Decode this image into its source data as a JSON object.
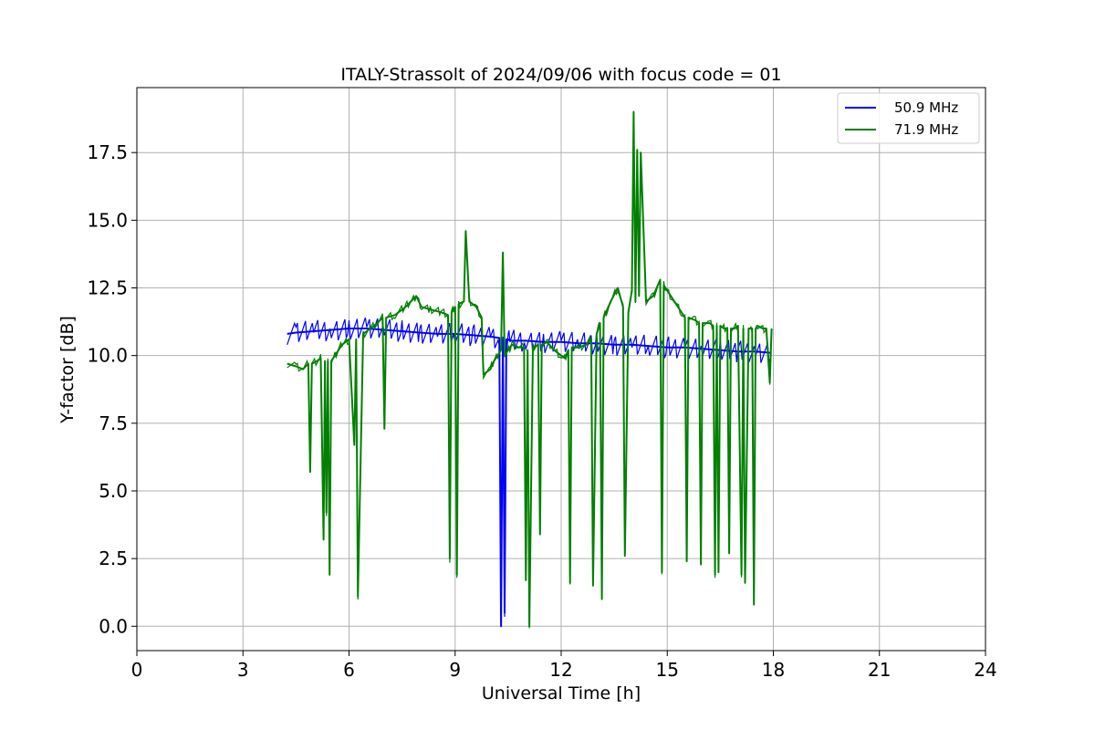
{
  "chart_data": {
    "type": "line",
    "title": "ITALY-Strassolt of 2024/09/06 with focus code = 01",
    "xlabel": "Universal Time [h]",
    "ylabel": "Y-factor [dB]",
    "xlim": [
      0,
      24
    ],
    "ylim": [
      -0.9,
      19.9
    ],
    "xticks": [
      0,
      3,
      6,
      9,
      12,
      15,
      18,
      21,
      24
    ],
    "xtick_labels": [
      "0",
      "3",
      "6",
      "9",
      "12",
      "15",
      "18",
      "21",
      "24"
    ],
    "yticks": [
      0.0,
      2.5,
      5.0,
      7.5,
      10.0,
      12.5,
      15.0,
      17.5
    ],
    "ytick_labels": [
      "0.0",
      "2.5",
      "5.0",
      "7.5",
      "10.0",
      "12.5",
      "15.0",
      "17.5"
    ],
    "grid": true,
    "legend_position": "top-right",
    "series": [
      {
        "name": "50.9 MHz",
        "color": "#0000ff",
        "x": [
          4.25,
          4.5,
          5.0,
          5.5,
          6.0,
          6.5,
          7.0,
          7.5,
          8.0,
          8.5,
          9.0,
          9.5,
          10.0,
          10.25,
          10.3,
          10.35,
          10.4,
          10.45,
          10.5,
          10.55,
          11.0,
          11.5,
          12.0,
          12.5,
          13.0,
          13.5,
          14.0,
          14.5,
          15.0,
          15.5,
          16.0,
          16.5,
          17.0,
          17.5,
          17.95
        ],
        "y": [
          10.8,
          10.85,
          10.9,
          10.95,
          11.0,
          11.0,
          10.95,
          10.9,
          10.85,
          10.8,
          10.8,
          10.75,
          10.7,
          10.65,
          0.0,
          10.6,
          0.5,
          10.6,
          10.6,
          10.55,
          10.55,
          10.5,
          10.5,
          10.45,
          10.45,
          10.4,
          10.4,
          10.35,
          10.3,
          10.3,
          10.25,
          10.2,
          10.15,
          10.15,
          10.1
        ],
        "band_halfwidth": 0.4
      },
      {
        "name": "71.9 MHz",
        "color": "#008000",
        "x": [
          4.25,
          4.5,
          4.7,
          4.85,
          4.9,
          4.95,
          5.1,
          5.2,
          5.28,
          5.32,
          5.36,
          5.4,
          5.45,
          5.5,
          5.6,
          5.7,
          5.8,
          6.0,
          6.15,
          6.2,
          6.25,
          6.4,
          6.6,
          6.8,
          6.95,
          7.0,
          7.05,
          7.3,
          7.6,
          7.9,
          8.05,
          8.3,
          8.6,
          8.8,
          8.85,
          8.9,
          9.0,
          9.05,
          9.1,
          9.25,
          9.3,
          9.4,
          9.6,
          9.75,
          9.8,
          10.0,
          10.1,
          10.2,
          10.3,
          10.35,
          10.4,
          10.55,
          10.6,
          10.8,
          10.95,
          11.0,
          11.05,
          11.1,
          11.2,
          11.35,
          11.4,
          11.45,
          11.6,
          11.8,
          12.0,
          12.1,
          12.2,
          12.25,
          12.3,
          12.5,
          12.7,
          12.85,
          12.9,
          13.0,
          13.1,
          13.15,
          13.2,
          13.4,
          13.6,
          13.75,
          13.8,
          13.9,
          14.0,
          14.05,
          14.1,
          14.15,
          14.2,
          14.25,
          14.4,
          14.6,
          14.8,
          14.85,
          14.9,
          15.0,
          15.2,
          15.4,
          15.5,
          15.55,
          15.6,
          15.8,
          15.9,
          15.95,
          16.0,
          16.2,
          16.3,
          16.35,
          16.4,
          16.45,
          16.5,
          16.6,
          16.7,
          16.75,
          16.8,
          16.9,
          17.0,
          17.1,
          17.15,
          17.2,
          17.3,
          17.4,
          17.45,
          17.5,
          17.55,
          17.7,
          17.8,
          17.9,
          17.95
        ],
        "y": [
          9.7,
          9.6,
          9.5,
          9.7,
          5.7,
          9.7,
          9.8,
          9.9,
          3.2,
          9.8,
          4.2,
          9.8,
          1.9,
          9.8,
          10.0,
          10.2,
          10.4,
          10.6,
          6.7,
          10.6,
          1.1,
          10.8,
          11.0,
          11.2,
          11.4,
          7.3,
          11.4,
          11.5,
          11.8,
          12.2,
          11.8,
          11.7,
          11.6,
          11.5,
          2.5,
          11.6,
          11.8,
          1.9,
          11.9,
          12.0,
          14.6,
          12.0,
          11.8,
          11.4,
          9.3,
          9.5,
          9.8,
          10.0,
          10.2,
          13.8,
          10.0,
          10.3,
          10.4,
          10.3,
          10.3,
          1.7,
          10.2,
          0.0,
          10.3,
          10.4,
          3.4,
          10.4,
          10.5,
          10.2,
          10.0,
          9.9,
          10.2,
          1.6,
          10.3,
          10.3,
          10.4,
          10.6,
          1.5,
          10.8,
          11.2,
          1.0,
          11.4,
          12.0,
          12.5,
          11.8,
          2.6,
          11.6,
          12.4,
          19.0,
          12.0,
          17.6,
          12.2,
          17.5,
          12.0,
          12.2,
          12.8,
          2.0,
          12.6,
          12.4,
          12.0,
          11.6,
          11.4,
          2.4,
          11.4,
          11.3,
          11.2,
          2.3,
          11.2,
          11.2,
          11.1,
          1.9,
          11.1,
          2.0,
          11.1,
          11.0,
          11.0,
          2.7,
          11.0,
          11.0,
          11.1,
          1.9,
          11.0,
          1.6,
          11.0,
          11.0,
          0.8,
          11.0,
          11.1,
          11.0,
          11.0,
          9.0,
          11.0
        ],
        "band_halfwidth": 0.15
      }
    ]
  }
}
